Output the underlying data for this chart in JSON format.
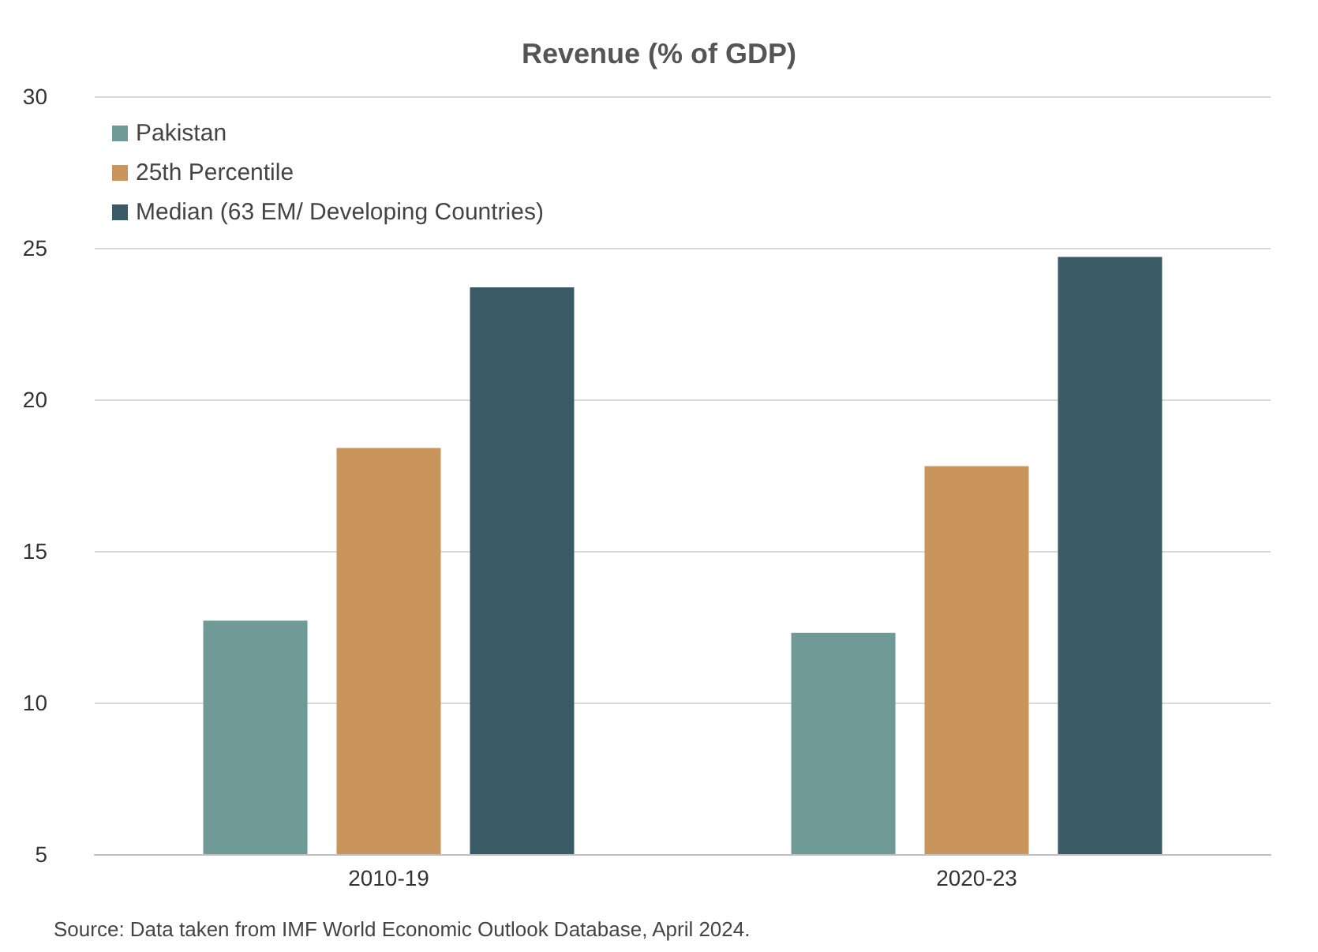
{
  "chart_data": {
    "type": "bar",
    "title": "Revenue (% of GDP)",
    "categories": [
      "2010-19",
      "2020-23"
    ],
    "series": [
      {
        "name": "Pakistan",
        "color": "#6f9a98",
        "values": [
          12.7,
          12.3
        ]
      },
      {
        "name": "25th Percentile",
        "color": "#c9955d",
        "values": [
          18.4,
          17.8
        ]
      },
      {
        "name": "Median (63 EM/ Developing Countries)",
        "color": "#3a5a66",
        "values": [
          23.7,
          24.7
        ]
      }
    ],
    "ylim": [
      5,
      30
    ],
    "yticks": [
      5,
      10,
      15,
      20,
      25,
      30
    ],
    "grid": "y",
    "legend": "top left",
    "annotations": [
      "Source: Data taken from IMF World Economic Outlook Database, April 2024."
    ]
  }
}
